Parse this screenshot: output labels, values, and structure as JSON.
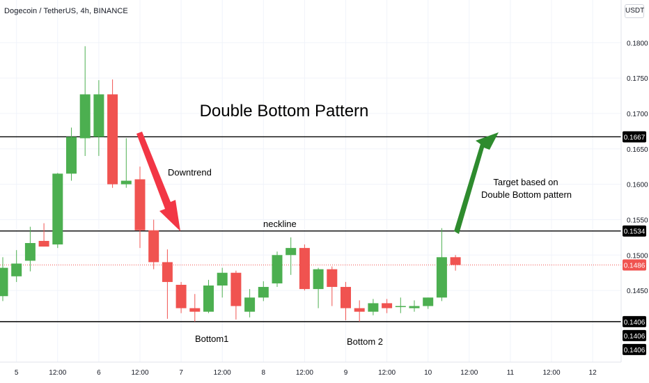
{
  "header": {
    "symbol_title": "Dogecoin / TetherUS, 4h, BINANCE",
    "currency_button": "USDT"
  },
  "colors": {
    "up": "#4caf50",
    "down": "#f05350",
    "grid": "#f0f3fa",
    "level_line": "#000000",
    "arrow_red": "#f23645",
    "arrow_green": "#2e8b2e",
    "current_price_line": "#f05350"
  },
  "annotations": {
    "title": "Double Bottom Pattern",
    "downtrend": "Downtrend",
    "neckline": "neckline",
    "target_line1": "Target based on",
    "target_line2": "Double Bottom pattern",
    "bottom1": "Bottom1",
    "bottom2": "Bottom 2"
  },
  "chart_data": {
    "type": "candlestick",
    "title": "Double Bottom Pattern",
    "interval": "4h",
    "y_axis": {
      "range": [
        0.1398,
        0.1815
      ],
      "ticks": [
        "0.1800",
        "0.1750",
        "0.1700",
        "0.1650",
        "0.1600",
        "0.1550",
        "0.1500",
        "0.1450"
      ],
      "tick_values": [
        0.18,
        0.175,
        0.17,
        0.165,
        0.16,
        0.155,
        0.15,
        0.145
      ],
      "position": "right"
    },
    "x_axis": {
      "ticks": [
        "5",
        "12:00",
        "6",
        "12:00",
        "7",
        "12:00",
        "8",
        "12:00",
        "9",
        "12:00",
        "10",
        "12:00",
        "11",
        "12:00",
        "12"
      ],
      "tick_bar_index": [
        1,
        4,
        7,
        10,
        13,
        16,
        19,
        22,
        25,
        28,
        31,
        34,
        37,
        40,
        43
      ]
    },
    "candles": [
      {
        "o": 0.1442,
        "h": 0.1497,
        "l": 0.1435,
        "c": 0.1482
      },
      {
        "o": 0.147,
        "h": 0.1507,
        "l": 0.1462,
        "c": 0.1488
      },
      {
        "o": 0.1492,
        "h": 0.154,
        "l": 0.1477,
        "c": 0.1517
      },
      {
        "o": 0.152,
        "h": 0.1545,
        "l": 0.1512,
        "c": 0.1512
      },
      {
        "o": 0.1515,
        "h": 0.1616,
        "l": 0.151,
        "c": 0.1615
      },
      {
        "o": 0.1615,
        "h": 0.168,
        "l": 0.1605,
        "c": 0.1667
      },
      {
        "o": 0.1665,
        "h": 0.1795,
        "l": 0.164,
        "c": 0.1727
      },
      {
        "o": 0.1667,
        "h": 0.1747,
        "l": 0.164,
        "c": 0.1727
      },
      {
        "o": 0.1727,
        "h": 0.1748,
        "l": 0.1595,
        "c": 0.16
      },
      {
        "o": 0.16,
        "h": 0.1665,
        "l": 0.1595,
        "c": 0.1605
      },
      {
        "o": 0.1607,
        "h": 0.1625,
        "l": 0.151,
        "c": 0.1535
      },
      {
        "o": 0.1535,
        "h": 0.155,
        "l": 0.148,
        "c": 0.149
      },
      {
        "o": 0.149,
        "h": 0.1508,
        "l": 0.141,
        "c": 0.1462
      },
      {
        "o": 0.1458,
        "h": 0.1462,
        "l": 0.1418,
        "c": 0.1425
      },
      {
        "o": 0.1425,
        "h": 0.1445,
        "l": 0.1406,
        "c": 0.142
      },
      {
        "o": 0.142,
        "h": 0.1465,
        "l": 0.1418,
        "c": 0.1457
      },
      {
        "o": 0.1457,
        "h": 0.1482,
        "l": 0.144,
        "c": 0.1475
      },
      {
        "o": 0.1475,
        "h": 0.1478,
        "l": 0.1409,
        "c": 0.1428
      },
      {
        "o": 0.142,
        "h": 0.1452,
        "l": 0.1412,
        "c": 0.144
      },
      {
        "o": 0.144,
        "h": 0.1463,
        "l": 0.1435,
        "c": 0.1455
      },
      {
        "o": 0.146,
        "h": 0.1505,
        "l": 0.1455,
        "c": 0.15
      },
      {
        "o": 0.15,
        "h": 0.1525,
        "l": 0.1472,
        "c": 0.151
      },
      {
        "o": 0.151,
        "h": 0.1515,
        "l": 0.145,
        "c": 0.1452
      },
      {
        "o": 0.1452,
        "h": 0.1482,
        "l": 0.1425,
        "c": 0.148
      },
      {
        "o": 0.148,
        "h": 0.1484,
        "l": 0.1428,
        "c": 0.1455
      },
      {
        "o": 0.1455,
        "h": 0.1462,
        "l": 0.1408,
        "c": 0.1425
      },
      {
        "o": 0.1425,
        "h": 0.1436,
        "l": 0.1406,
        "c": 0.142
      },
      {
        "o": 0.142,
        "h": 0.1438,
        "l": 0.1415,
        "c": 0.1432
      },
      {
        "o": 0.1432,
        "h": 0.1438,
        "l": 0.1418,
        "c": 0.1425
      },
      {
        "o": 0.1428,
        "h": 0.144,
        "l": 0.1418,
        "c": 0.1428
      },
      {
        "o": 0.1425,
        "h": 0.1436,
        "l": 0.142,
        "c": 0.1428
      },
      {
        "o": 0.1428,
        "h": 0.144,
        "l": 0.1424,
        "c": 0.144
      },
      {
        "o": 0.144,
        "h": 0.1538,
        "l": 0.1435,
        "c": 0.1497
      },
      {
        "o": 0.1497,
        "h": 0.15,
        "l": 0.1478,
        "c": 0.1486
      }
    ],
    "horizontal_levels": [
      {
        "name": "target",
        "value": 0.1667,
        "label": "0.1667"
      },
      {
        "name": "neckline",
        "value": 0.1534,
        "label": "0.1534"
      },
      {
        "name": "bottom",
        "value": 0.1406,
        "label": "0.1406"
      }
    ],
    "current_price": {
      "value": 0.1486,
      "label": "0.1486"
    },
    "extra_price_labels": [
      "0.1406",
      "0.1406"
    ]
  }
}
